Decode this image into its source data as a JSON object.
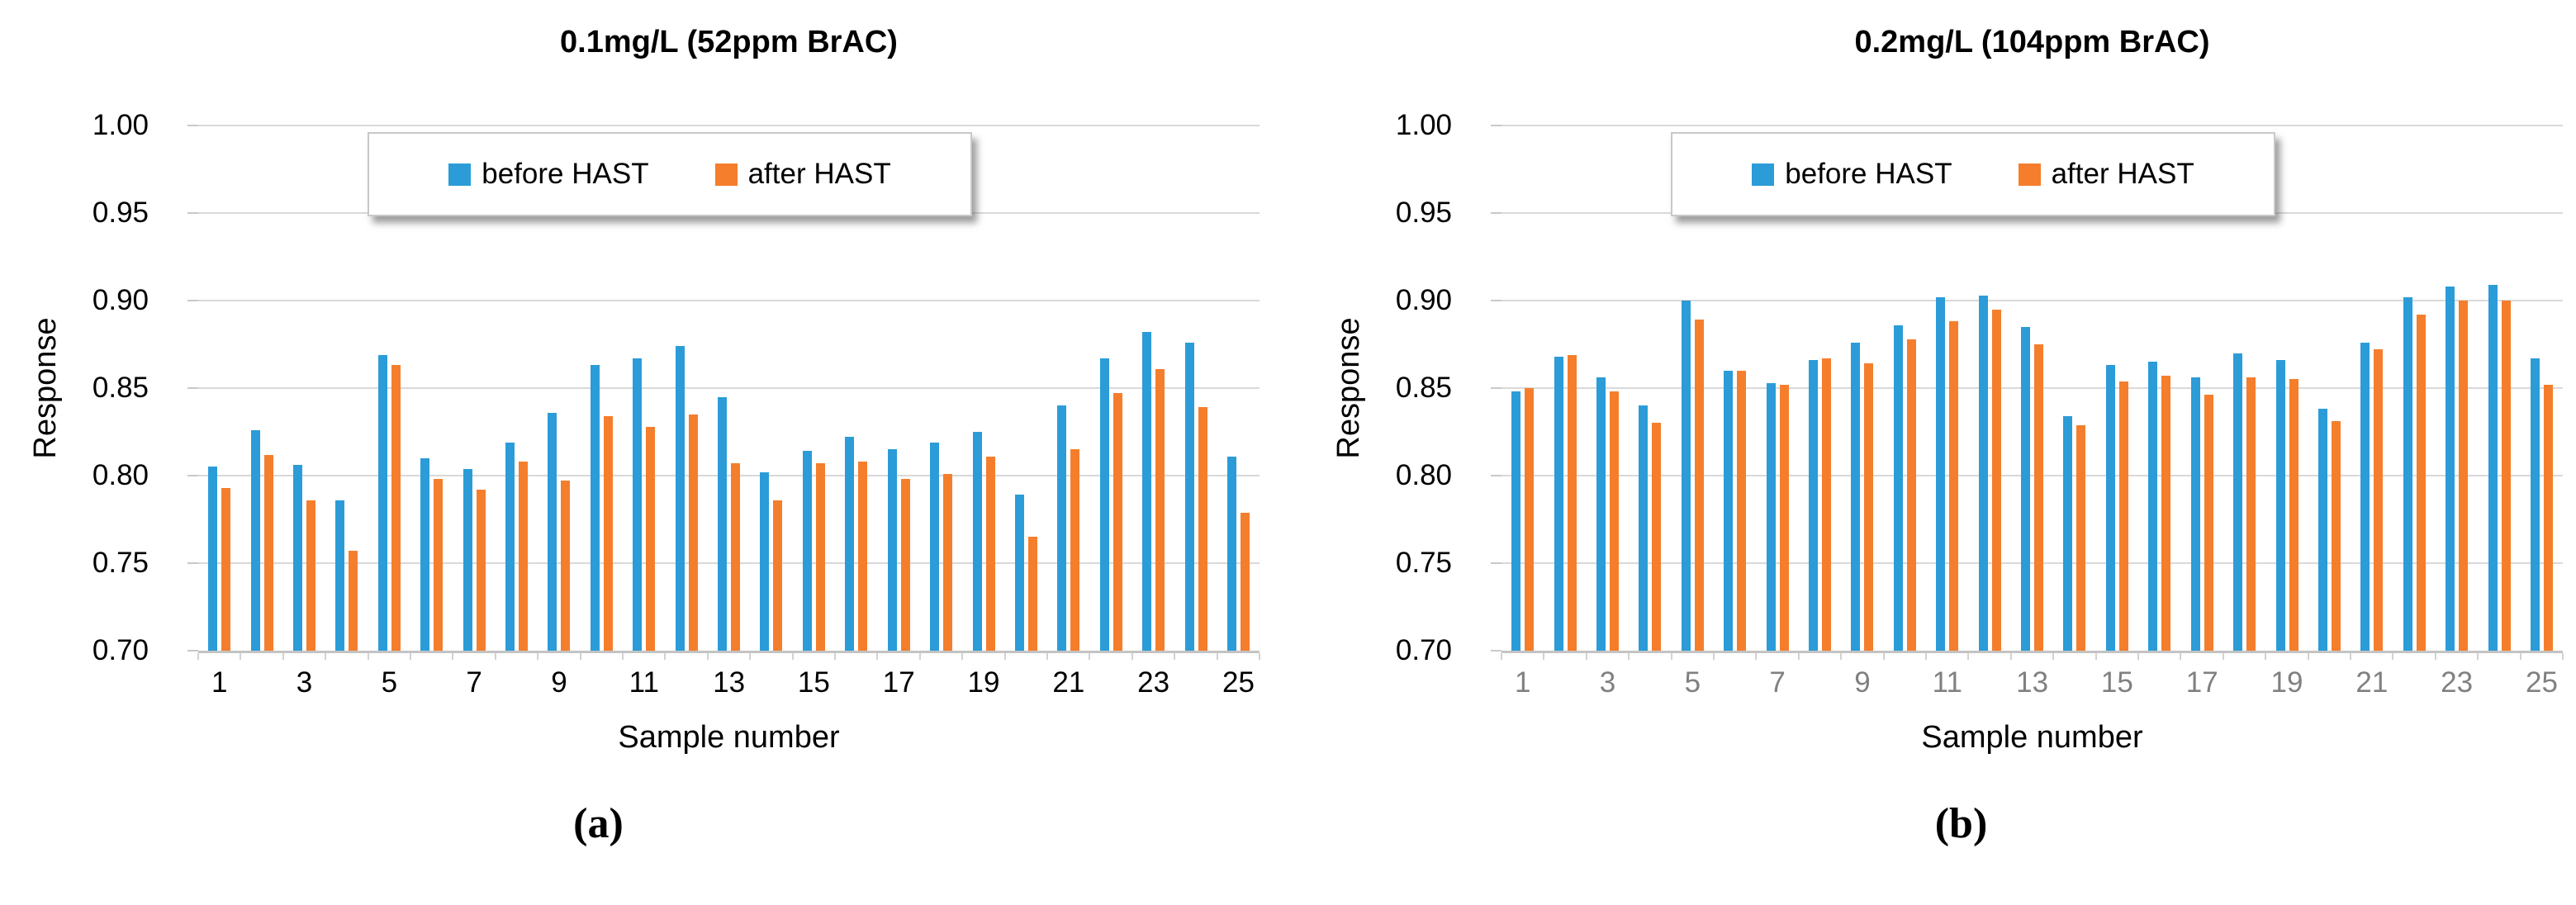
{
  "page": {
    "background": "#ffffff"
  },
  "colors": {
    "before_bar": "#2b9cd8",
    "after_bar": "#f57e2c",
    "gridline": "#d9d9d9",
    "axis_line": "#c3c3c3",
    "black_tick_label": "#000000",
    "gray_tick_label": "#808080"
  },
  "chart_data": [
    {
      "type": "bar",
      "title": "0.1mg/L (52ppm BrAC)",
      "caption": "(a)",
      "xlabel": "Sample number",
      "ylabel": "Response",
      "ylim": [
        0.7,
        1.0
      ],
      "grid": true,
      "legend_position": "top-inside-overlay",
      "yticks": [
        "1.00",
        "0.95",
        "0.90",
        "0.85",
        "0.80",
        "0.75",
        "0.70"
      ],
      "xticks_shown": [
        "1",
        "3",
        "5",
        "7",
        "9",
        "11",
        "13",
        "15",
        "17",
        "19",
        "21",
        "23",
        "25"
      ],
      "x_tick_color": "#000000",
      "categories": [
        1,
        2,
        3,
        4,
        5,
        6,
        7,
        8,
        9,
        10,
        11,
        12,
        13,
        14,
        15,
        16,
        17,
        18,
        19,
        20,
        21,
        22,
        23,
        24,
        25
      ],
      "series": [
        {
          "name": "before HAST",
          "color": "#2b9cd8",
          "values": [
            0.805,
            0.826,
            0.806,
            0.786,
            0.869,
            0.81,
            0.804,
            0.819,
            0.836,
            0.863,
            0.867,
            0.874,
            0.845,
            0.802,
            0.814,
            0.822,
            0.815,
            0.819,
            0.825,
            0.789,
            0.84,
            0.867,
            0.882,
            0.876,
            0.811
          ]
        },
        {
          "name": "after HAST",
          "color": "#f57e2c",
          "values": [
            0.793,
            0.812,
            0.786,
            0.757,
            0.863,
            0.798,
            0.792,
            0.808,
            0.797,
            0.834,
            0.828,
            0.835,
            0.807,
            0.786,
            0.807,
            0.808,
            0.798,
            0.801,
            0.811,
            0.765,
            0.815,
            0.847,
            0.861,
            0.839,
            0.779
          ]
        }
      ]
    },
    {
      "type": "bar",
      "title": "0.2mg/L (104ppm BrAC)",
      "caption": "(b)",
      "xlabel": "Sample number",
      "ylabel": "Response",
      "ylim": [
        0.7,
        1.0
      ],
      "grid": true,
      "legend_position": "top-inside-overlay",
      "yticks": [
        "1.00",
        "0.95",
        "0.90",
        "0.85",
        "0.80",
        "0.75",
        "0.70"
      ],
      "xticks_shown": [
        "1",
        "3",
        "5",
        "7",
        "9",
        "11",
        "13",
        "15",
        "17",
        "19",
        "21",
        "23",
        "25"
      ],
      "x_tick_color": "#808080",
      "categories": [
        1,
        2,
        3,
        4,
        5,
        6,
        7,
        8,
        9,
        10,
        11,
        12,
        13,
        14,
        15,
        16,
        17,
        18,
        19,
        20,
        21,
        22,
        23,
        24,
        25
      ],
      "series": [
        {
          "name": "before HAST",
          "color": "#2b9cd8",
          "values": [
            0.848,
            0.868,
            0.856,
            0.84,
            0.9,
            0.86,
            0.853,
            0.866,
            0.876,
            0.886,
            0.902,
            0.903,
            0.885,
            0.834,
            0.863,
            0.865,
            0.856,
            0.87,
            0.866,
            0.838,
            0.876,
            0.902,
            0.908,
            0.909,
            0.867
          ]
        },
        {
          "name": "after HAST",
          "color": "#f57e2c",
          "values": [
            0.85,
            0.869,
            0.848,
            0.83,
            0.889,
            0.86,
            0.852,
            0.867,
            0.864,
            0.878,
            0.888,
            0.895,
            0.875,
            0.829,
            0.854,
            0.857,
            0.846,
            0.856,
            0.855,
            0.831,
            0.872,
            0.892,
            0.9,
            0.9,
            0.852
          ]
        }
      ]
    }
  ]
}
